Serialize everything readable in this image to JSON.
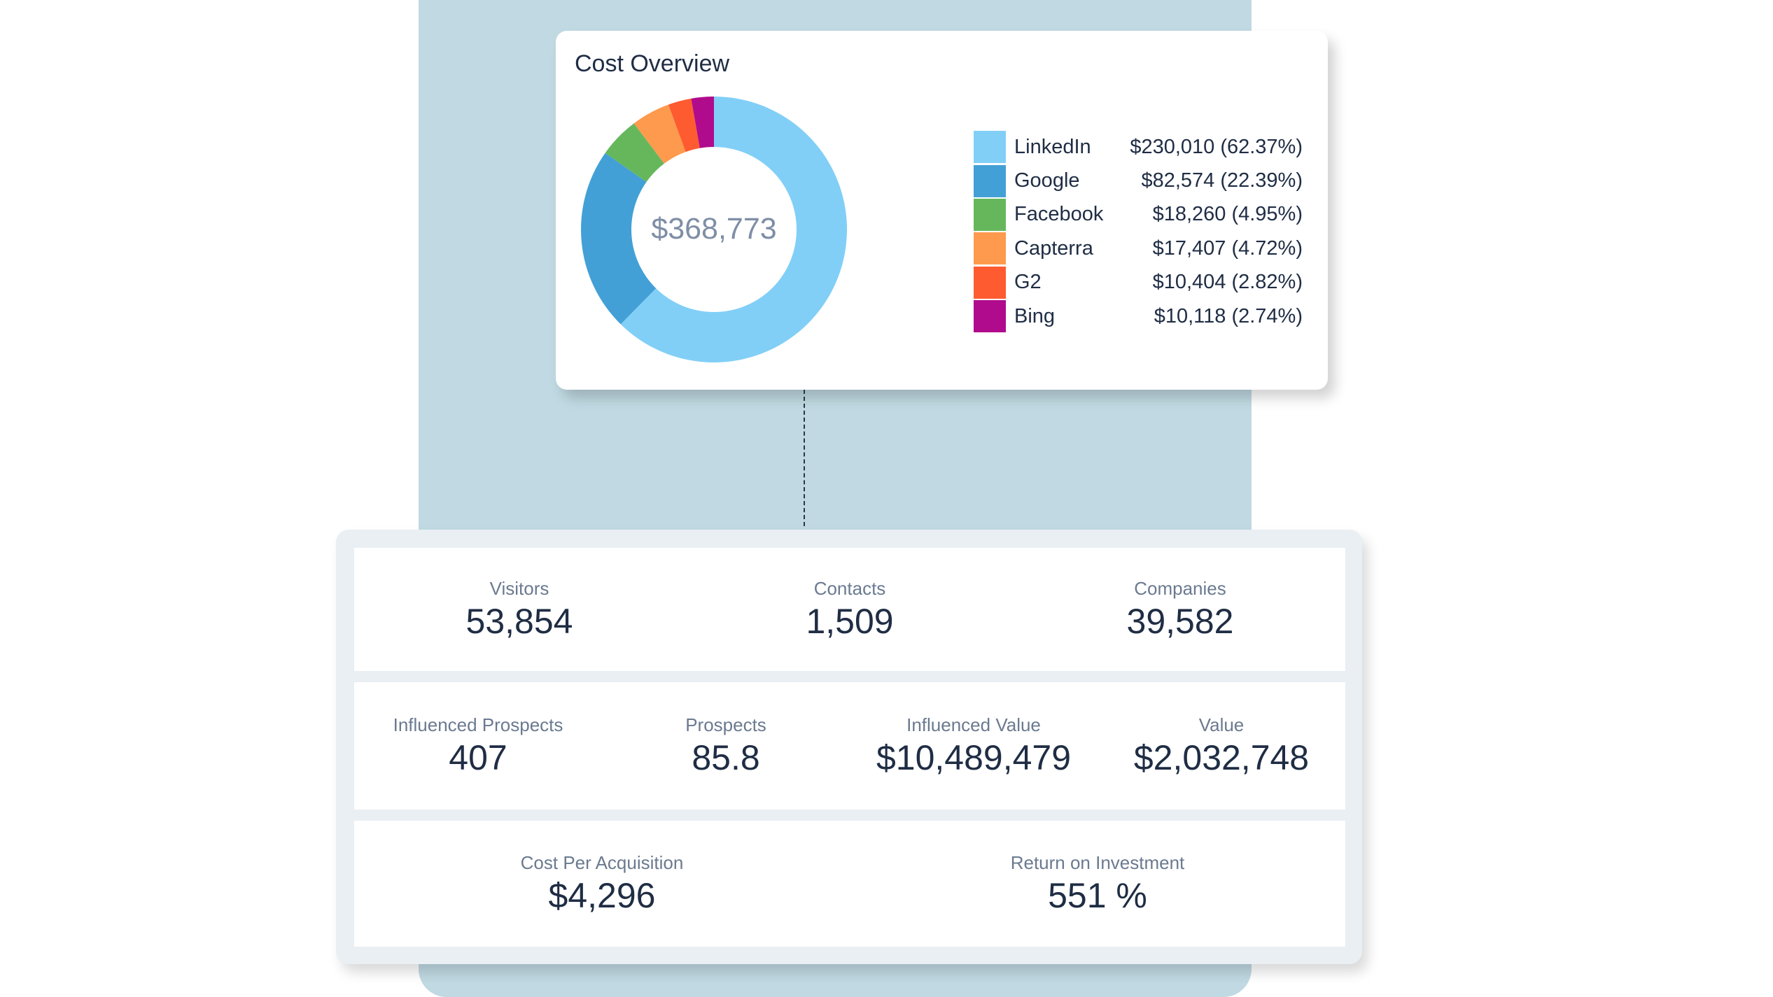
{
  "cost_overview": {
    "title": "Cost Overview",
    "total": "$368,773",
    "legend": [
      {
        "name": "LinkedIn",
        "value": "$230,010 (62.37%)",
        "color": "#81cff7"
      },
      {
        "name": "Google",
        "value": "$82,574 (22.39%)",
        "color": "#42a0d6"
      },
      {
        "name": "Facebook",
        "value": "$18,260 (4.95%)",
        "color": "#66b75c"
      },
      {
        "name": "Capterra",
        "value": "$17,407 (4.72%)",
        "color": "#fd9a4d"
      },
      {
        "name": "G2",
        "value": "$10,404 (2.82%)",
        "color": "#fe5b30"
      },
      {
        "name": "Bing",
        "value": "$10,118 (2.74%)",
        "color": "#b00b8c"
      }
    ]
  },
  "chart_data": {
    "type": "pie",
    "title": "Cost Overview",
    "categories": [
      "LinkedIn",
      "Google",
      "Facebook",
      "Capterra",
      "G2",
      "Bing"
    ],
    "values": [
      230010,
      82574,
      18260,
      17407,
      10404,
      10118
    ],
    "percentages": [
      62.37,
      22.39,
      4.95,
      4.72,
      2.82,
      2.74
    ],
    "center_label": "$368,773",
    "legend_position": "right"
  },
  "stats": {
    "row1": [
      {
        "label": "Visitors",
        "value": "53,854"
      },
      {
        "label": "Contacts",
        "value": "1,509"
      },
      {
        "label": "Companies",
        "value": "39,582"
      }
    ],
    "row2": [
      {
        "label": "Influenced Prospects",
        "value": "407"
      },
      {
        "label": "Prospects",
        "value": "85.8"
      },
      {
        "label": "Influenced Value",
        "value": "$10,489,479"
      },
      {
        "label": "Value",
        "value": "$2,032,748"
      }
    ],
    "row3": [
      {
        "label": "Cost Per Acquisition",
        "value": "$4,296"
      },
      {
        "label": "Return on Investment",
        "value": "551 %"
      }
    ]
  }
}
